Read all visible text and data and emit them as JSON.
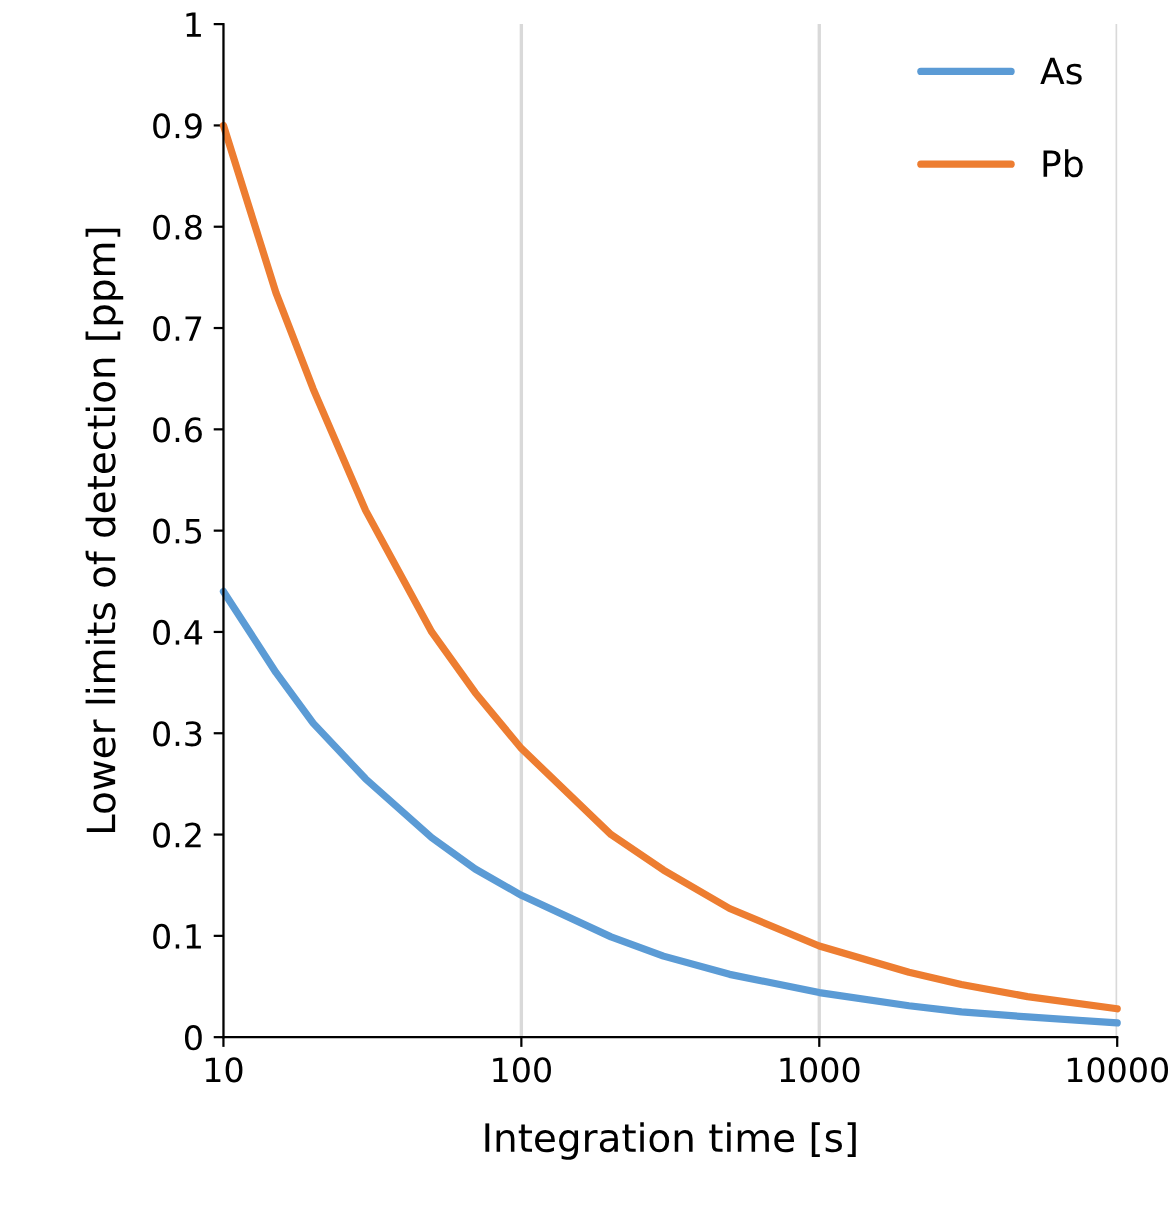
{
  "chart_data": {
    "type": "line",
    "xlabel": "Integration time [s]",
    "ylabel": "Lower limits of detection [ppm]",
    "x": [
      10,
      15,
      20,
      30,
      50,
      70,
      100,
      200,
      300,
      500,
      1000,
      2000,
      3000,
      5000,
      10000
    ],
    "series": [
      {
        "name": "As",
        "color": "#5b9bd5",
        "values": [
          0.44,
          0.36,
          0.31,
          0.255,
          0.197,
          0.166,
          0.14,
          0.099,
          0.08,
          0.062,
          0.044,
          0.031,
          0.025,
          0.02,
          0.014
        ]
      },
      {
        "name": "Pb",
        "color": "#ed7d31",
        "values": [
          0.9,
          0.735,
          0.64,
          0.52,
          0.4,
          0.34,
          0.285,
          0.2,
          0.165,
          0.127,
          0.09,
          0.064,
          0.052,
          0.04,
          0.028
        ]
      }
    ],
    "log": "x",
    "xlim": [
      10,
      10000
    ],
    "xticks": [
      10,
      100,
      1000,
      10000
    ],
    "ylim": [
      0,
      1
    ],
    "yticks": [
      0,
      0.1,
      0.2,
      0.3,
      0.4,
      0.5,
      0.6,
      0.7,
      0.8,
      0.9,
      1
    ],
    "grid": "x",
    "legend": "top right",
    "marker": "none",
    "line_style": "solid"
  }
}
